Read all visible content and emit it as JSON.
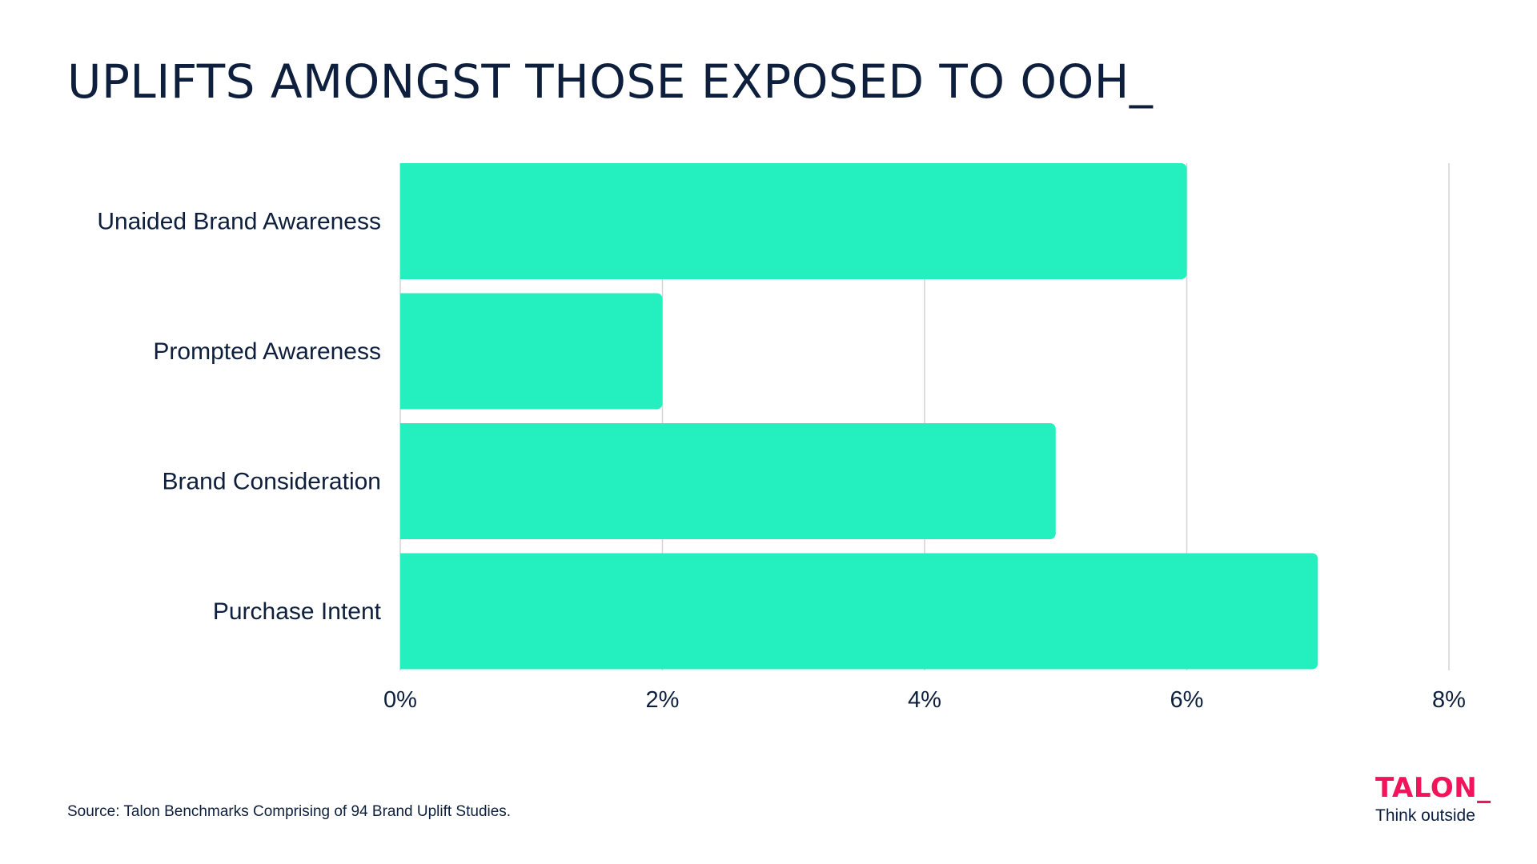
{
  "title": "UPLIFTS AMONGST THOSE EXPOSED TO OOH_",
  "source": "Source: Talon Benchmarks Comprising of 94 Brand Uplift Studies.",
  "brand": {
    "name": "TALON_",
    "tagline": "Think outside"
  },
  "colors": {
    "bar": "#23efbf",
    "text": "#0d1f3c",
    "grid": "#d4d4d4",
    "brand": "#f0145a"
  },
  "chart_data": {
    "type": "bar",
    "orientation": "horizontal",
    "categories": [
      "Unaided Brand Awareness",
      "Prompted Awareness",
      "Brand Consideration",
      "Purchase Intent"
    ],
    "values": [
      6,
      2,
      5,
      7
    ],
    "unit": "%",
    "xlim": [
      0,
      8
    ],
    "xticks": [
      0,
      2,
      4,
      6,
      8
    ],
    "xtick_labels": [
      "0%",
      "2%",
      "4%",
      "6%",
      "8%"
    ],
    "grid": "vertical",
    "legend": "none"
  }
}
